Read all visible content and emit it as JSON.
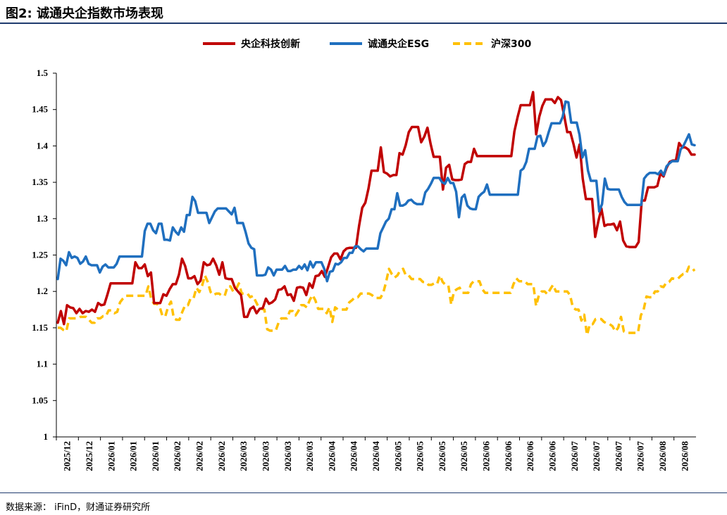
{
  "header": {
    "title": "图2: 诚通央企指数市场表现"
  },
  "footer": {
    "source": "数据来源：  iFinD，财通证券研究所"
  },
  "chart_data": {
    "type": "line",
    "title": "图2: 诚通央企指数市场表现",
    "xlabel": "",
    "ylabel": "",
    "ylim": [
      1,
      1.5
    ],
    "yticks": [
      "1",
      "1.05",
      "1.1",
      "1.15",
      "1.2",
      "1.25",
      "1.3",
      "1.35",
      "1.4",
      "1.45",
      "1.5"
    ],
    "xtick_labels": [
      "2025/12",
      "2025/12",
      "2026/01",
      "2026/01",
      "2026/01",
      "2026/02",
      "2026/02",
      "2026/02",
      "2026/03",
      "2026/03",
      "2026/03",
      "2026/03",
      "2026/04",
      "2026/04",
      "2026/04",
      "2026/05",
      "2026/05",
      "2026/05",
      "2026/05",
      "2026/06",
      "2026/06",
      "2026/06",
      "2026/06",
      "2026/07",
      "2026/07",
      "2026/07",
      "2026/07",
      "2026/08",
      "2026/08"
    ],
    "grid": false,
    "legend_position": "top-center",
    "series": [
      {
        "name": "央企科技创新",
        "color": "#c00000",
        "style": "solid",
        "values": [
          1.157,
          1.173,
          1.155,
          1.181,
          1.178,
          1.177,
          1.17,
          1.176,
          1.17,
          1.173,
          1.172,
          1.175,
          1.172,
          1.184,
          1.181,
          1.182,
          1.196,
          1.211,
          1.211,
          1.211,
          1.211,
          1.211,
          1.211,
          1.211,
          1.211,
          1.24,
          1.232,
          1.232,
          1.237,
          1.221,
          1.226,
          1.184,
          1.184,
          1.184,
          1.196,
          1.194,
          1.203,
          1.21,
          1.21,
          1.223,
          1.245,
          1.235,
          1.218,
          1.218,
          1.221,
          1.21,
          1.215,
          1.24,
          1.236,
          1.237,
          1.245,
          1.236,
          1.223,
          1.24,
          1.218,
          1.217,
          1.217,
          1.205,
          1.2,
          1.195,
          1.165,
          1.165,
          1.176,
          1.179,
          1.17,
          1.176,
          1.177,
          1.19,
          1.183,
          1.185,
          1.189,
          1.202,
          1.203,
          1.207,
          1.195,
          1.196,
          1.187,
          1.205,
          1.206,
          1.205,
          1.195,
          1.211,
          1.205,
          1.221,
          1.222,
          1.228,
          1.22,
          1.233,
          1.247,
          1.252,
          1.252,
          1.244,
          1.255,
          1.259,
          1.26,
          1.26,
          1.26,
          1.29,
          1.315,
          1.322,
          1.341,
          1.366,
          1.366,
          1.366,
          1.398,
          1.364,
          1.362,
          1.358,
          1.36,
          1.36,
          1.39,
          1.388,
          1.401,
          1.419,
          1.426,
          1.426,
          1.426,
          1.405,
          1.413,
          1.425,
          1.403,
          1.385,
          1.385,
          1.385,
          1.34,
          1.37,
          1.374,
          1.354,
          1.353,
          1.353,
          1.354,
          1.375,
          1.378,
          1.378,
          1.396,
          1.386,
          1.386,
          1.386,
          1.386,
          1.386,
          1.386,
          1.386,
          1.386,
          1.386,
          1.386,
          1.386,
          1.386,
          1.42,
          1.439,
          1.456,
          1.456,
          1.456,
          1.456,
          1.474,
          1.416,
          1.44,
          1.455,
          1.464,
          1.464,
          1.464,
          1.459,
          1.467,
          1.463,
          1.442,
          1.419,
          1.419,
          1.403,
          1.384,
          1.402,
          1.355,
          1.327,
          1.327,
          1.327,
          1.275,
          1.296,
          1.314,
          1.29,
          1.292,
          1.292,
          1.293,
          1.284,
          1.296,
          1.27,
          1.262,
          1.261,
          1.261,
          1.261,
          1.268,
          1.325,
          1.325,
          1.343,
          1.343,
          1.343,
          1.345,
          1.362,
          1.358,
          1.37,
          1.378,
          1.38,
          1.38,
          1.404,
          1.398,
          1.398,
          1.395,
          1.388,
          1.388
        ]
      },
      {
        "name": "诚通央企ESG",
        "color": "#1f6fbf",
        "style": "solid",
        "values": [
          1.217,
          1.245,
          1.242,
          1.236,
          1.254,
          1.246,
          1.248,
          1.246,
          1.238,
          1.241,
          1.248,
          1.238,
          1.236,
          1.236,
          1.236,
          1.226,
          1.234,
          1.237,
          1.233,
          1.233,
          1.233,
          1.238,
          1.248,
          1.248,
          1.248,
          1.248,
          1.248,
          1.248,
          1.248,
          1.248,
          1.248,
          1.283,
          1.293,
          1.293,
          1.284,
          1.28,
          1.293,
          1.293,
          1.271,
          1.271,
          1.27,
          1.288,
          1.282,
          1.278,
          1.288,
          1.282,
          1.305,
          1.305,
          1.33,
          1.324,
          1.308,
          1.308,
          1.308,
          1.308,
          1.294,
          1.302,
          1.31,
          1.314,
          1.314,
          1.314,
          1.314,
          1.31,
          1.306,
          1.315,
          1.294,
          1.294,
          1.294,
          1.281,
          1.266,
          1.26,
          1.258,
          1.222,
          1.222,
          1.222,
          1.223,
          1.233,
          1.23,
          1.222,
          1.23,
          1.23,
          1.23,
          1.235,
          1.228,
          1.228,
          1.23,
          1.23,
          1.235,
          1.231,
          1.237,
          1.229,
          1.241,
          1.233,
          1.24,
          1.24,
          1.24,
          1.231,
          1.214,
          1.227,
          1.228,
          1.238,
          1.237,
          1.24,
          1.246,
          1.246,
          1.253,
          1.253,
          1.262,
          1.262,
          1.258,
          1.255,
          1.259,
          1.259,
          1.259,
          1.259,
          1.259,
          1.28,
          1.288,
          1.296,
          1.3,
          1.313,
          1.313,
          1.335,
          1.318,
          1.318,
          1.32,
          1.325,
          1.326,
          1.322,
          1.32,
          1.32,
          1.32,
          1.336,
          1.341,
          1.348,
          1.356,
          1.356,
          1.356,
          1.35,
          1.348,
          1.356,
          1.349,
          1.349,
          1.337,
          1.302,
          1.329,
          1.333,
          1.318,
          1.314,
          1.313,
          1.313,
          1.33,
          1.334,
          1.337,
          1.347,
          1.333,
          1.333,
          1.333,
          1.333,
          1.333,
          1.333,
          1.333,
          1.333,
          1.333,
          1.333,
          1.333,
          1.366,
          1.369,
          1.378,
          1.396,
          1.396,
          1.396,
          1.413,
          1.414,
          1.4,
          1.406,
          1.419,
          1.431,
          1.431,
          1.431,
          1.431,
          1.44,
          1.461,
          1.46,
          1.432,
          1.432,
          1.432,
          1.415,
          1.384,
          1.394,
          1.366,
          1.352,
          1.352,
          1.352,
          1.31,
          1.32,
          1.355,
          1.341,
          1.34,
          1.34,
          1.34,
          1.34,
          1.33,
          1.323,
          1.319,
          1.319,
          1.319,
          1.319,
          1.319,
          1.319,
          1.355,
          1.36,
          1.363,
          1.363,
          1.363,
          1.361,
          1.366,
          1.36,
          1.372,
          1.376,
          1.379,
          1.379,
          1.379,
          1.395,
          1.4,
          1.408,
          1.416,
          1.402,
          1.401
        ]
      },
      {
        "name": "沪深300",
        "color": "#ffc000",
        "style": "dashed",
        "values": [
          1.15,
          1.15,
          1.147,
          1.145,
          1.163,
          1.163,
          1.163,
          1.163,
          1.165,
          1.165,
          1.165,
          1.161,
          1.157,
          1.157,
          1.163,
          1.163,
          1.166,
          1.166,
          1.174,
          1.174,
          1.17,
          1.172,
          1.185,
          1.19,
          1.194,
          1.194,
          1.194,
          1.194,
          1.194,
          1.194,
          1.194,
          1.194,
          1.207,
          1.19,
          1.183,
          1.183,
          1.179,
          1.166,
          1.166,
          1.179,
          1.186,
          1.163,
          1.161,
          1.161,
          1.172,
          1.181,
          1.181,
          1.191,
          1.191,
          1.205,
          1.199,
          1.208,
          1.222,
          1.213,
          1.199,
          1.195,
          1.197,
          1.197,
          1.194,
          1.194,
          1.207,
          1.207,
          1.2,
          1.203,
          1.211,
          1.197,
          1.197,
          1.197,
          1.192,
          1.194,
          1.186,
          1.178,
          1.176,
          1.175,
          1.148,
          1.146,
          1.146,
          1.146,
          1.157,
          1.163,
          1.163,
          1.163,
          1.173,
          1.173,
          1.167,
          1.173,
          1.181,
          1.181,
          1.178,
          1.188,
          1.195,
          1.188,
          1.176,
          1.176,
          1.176,
          1.17,
          1.178,
          1.158,
          1.178,
          1.175,
          1.175,
          1.175,
          1.175,
          1.185,
          1.188,
          1.192,
          1.192,
          1.197,
          1.197,
          1.197,
          1.197,
          1.195,
          1.191,
          1.191,
          1.191,
          1.198,
          1.213,
          1.231,
          1.224,
          1.219,
          1.222,
          1.229,
          1.231,
          1.222,
          1.222,
          1.217,
          1.217,
          1.217,
          1.217,
          1.213,
          1.213,
          1.209,
          1.209,
          1.211,
          1.21,
          1.222,
          1.213,
          1.209,
          1.208,
          1.182,
          1.2,
          1.203,
          1.205,
          1.198,
          1.198,
          1.198,
          1.21,
          1.214,
          1.214,
          1.214,
          1.203,
          1.198,
          1.198,
          1.198,
          1.198,
          1.198,
          1.198,
          1.198,
          1.198,
          1.198,
          1.198,
          1.21,
          1.218,
          1.214,
          1.214,
          1.214,
          1.21,
          1.21,
          1.21,
          1.18,
          1.195,
          1.2,
          1.2,
          1.196,
          1.203,
          1.209,
          1.2,
          1.2,
          1.2,
          1.2,
          1.2,
          1.195,
          1.178,
          1.175,
          1.175,
          1.16,
          1.168,
          1.14,
          1.155,
          1.155,
          1.162,
          1.162,
          1.162,
          1.158,
          1.156,
          1.155,
          1.152,
          1.145,
          1.15,
          1.165,
          1.145,
          1.143,
          1.143,
          1.143,
          1.143,
          1.143,
          1.167,
          1.175,
          1.193,
          1.192,
          1.192,
          1.2,
          1.2,
          1.207,
          1.206,
          1.212,
          1.213,
          1.218,
          1.217,
          1.217,
          1.221,
          1.224,
          1.224,
          1.234,
          1.233,
          1.228
        ]
      }
    ]
  }
}
